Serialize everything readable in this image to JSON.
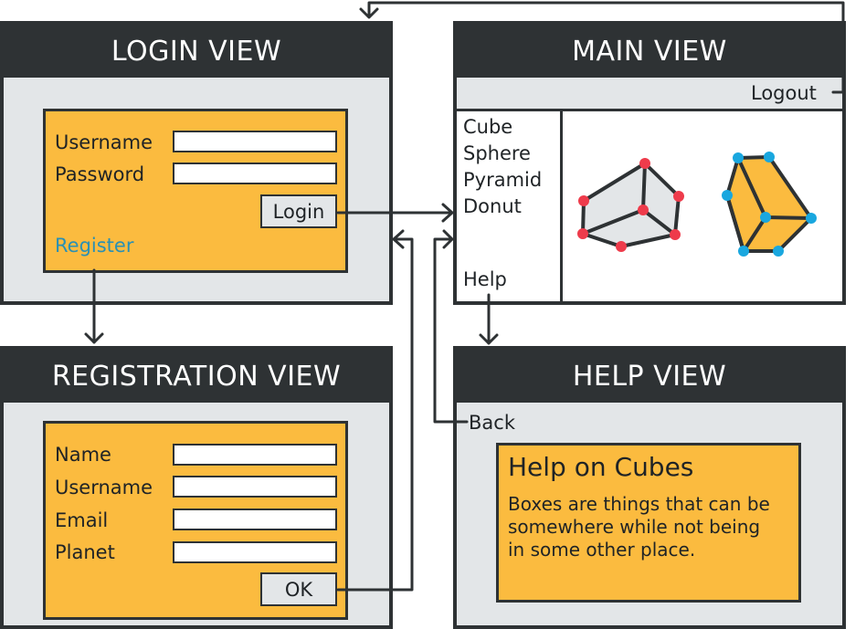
{
  "colors": {
    "dark": "#2e3234",
    "view_bg": "#e3e6e8",
    "panel": "#fbbb3f",
    "link": "#2a90b4",
    "vertex_red": "#ee3b4b",
    "vertex_blue": "#19a7df"
  },
  "login_view": {
    "title": "LOGIN VIEW",
    "username_label": "Username",
    "password_label": "Password",
    "login_button": "Login",
    "register_link": "Register"
  },
  "main_view": {
    "title": "MAIN VIEW",
    "logout_link": "Logout",
    "menu": [
      "Cube",
      "Sphere",
      "Pyramid",
      "Donut"
    ],
    "help_link": "Help",
    "shapes": [
      "wireframe-box-icon",
      "solid-box-icon"
    ]
  },
  "registration_view": {
    "title": "REGISTRATION VIEW",
    "name_label": "Name",
    "username_label": "Username",
    "email_label": "Email",
    "planet_label": "Planet",
    "ok_button": "OK"
  },
  "help_view": {
    "title": "HELP VIEW",
    "back_link": "Back",
    "heading": "Help on Cubes",
    "text": "Boxes are things that can be somewhere while not being in some other place."
  }
}
